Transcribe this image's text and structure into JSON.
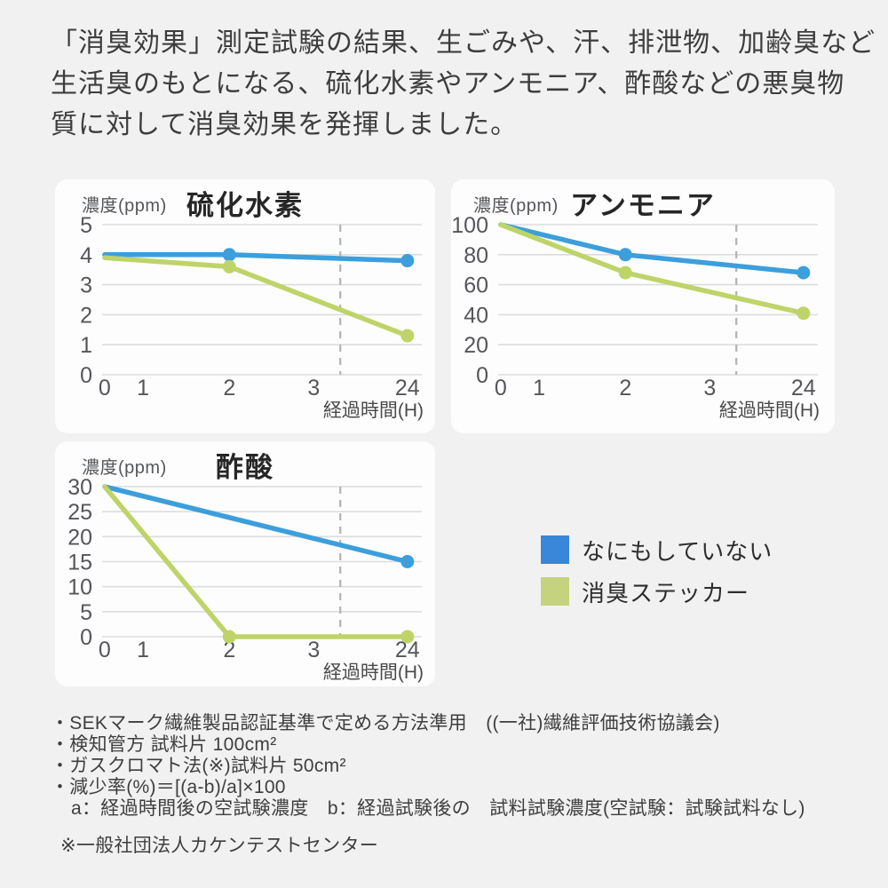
{
  "page": {
    "background": "#F1F1F2",
    "card_background": "#FDFDFD"
  },
  "header": {
    "text": "「消臭効果」測定試験の結果、生ごみや、汗、排泄物、加齢臭など\n生活臭のもとになる、硫化水素やアンモニア、酢酸などの悪臭物\n質に対して消臭効果を発揮しました。"
  },
  "colors": {
    "line_untreated": "#3C9FDC",
    "line_sticker": "#BED469",
    "legend_untreated": "#3A86D8",
    "legend_sticker": "#C5D37E",
    "grid": "#DCDDDE",
    "dashed_divider": "#B3B3B5",
    "tick_text": "#55565A",
    "axis_label_text": "#4A4A4A"
  },
  "chart_data": [
    {
      "type": "line",
      "title": "硫化水素",
      "ylabel": "濃度(ppm)",
      "xlabel": "経過時間(H)",
      "x_categories": [
        "0",
        "1",
        "2",
        "3",
        "24"
      ],
      "ylim": [
        0,
        5
      ],
      "yticks": [
        5,
        4,
        3,
        2,
        1,
        0
      ],
      "grid": true,
      "dashed_divider_between": [
        "3",
        "24"
      ],
      "series": [
        {
          "name": "なにもしていない",
          "color": "#3C9FDC",
          "x": [
            "0",
            "2",
            "24"
          ],
          "y": [
            4.0,
            4.0,
            3.8
          ]
        },
        {
          "name": "消臭ステッカー",
          "color": "#BED469",
          "x": [
            "0",
            "2",
            "24"
          ],
          "y": [
            3.9,
            3.6,
            1.3
          ]
        }
      ]
    },
    {
      "type": "line",
      "title": "アンモニア",
      "ylabel": "濃度(ppm)",
      "xlabel": "経過時間(H)",
      "x_categories": [
        "0",
        "1",
        "2",
        "3",
        "24"
      ],
      "ylim": [
        0,
        100
      ],
      "yticks": [
        100,
        80,
        60,
        40,
        20,
        0
      ],
      "grid": true,
      "dashed_divider_between": [
        "3",
        "24"
      ],
      "series": [
        {
          "name": "なにもしていない",
          "color": "#3C9FDC",
          "x": [
            "0",
            "2",
            "24"
          ],
          "y": [
            100,
            80,
            68
          ]
        },
        {
          "name": "消臭ステッカー",
          "color": "#BED469",
          "x": [
            "0",
            "2",
            "24"
          ],
          "y": [
            100,
            68,
            41
          ]
        }
      ]
    },
    {
      "type": "line",
      "title": "酢酸",
      "ylabel": "濃度(ppm)",
      "xlabel": "経過時間(H)",
      "x_categories": [
        "0",
        "1",
        "2",
        "3",
        "24"
      ],
      "ylim": [
        0,
        30
      ],
      "yticks": [
        30,
        25,
        20,
        15,
        10,
        5,
        0
      ],
      "grid": true,
      "dashed_divider_between": [
        "3",
        "24"
      ],
      "series": [
        {
          "name": "なにもしていない",
          "color": "#3C9FDC",
          "x": [
            "0",
            "24"
          ],
          "y": [
            30,
            15
          ]
        },
        {
          "name": "消臭ステッカー",
          "color": "#BED469",
          "x": [
            "0",
            "2",
            "24"
          ],
          "y": [
            30,
            0,
            0
          ]
        }
      ]
    }
  ],
  "legend": {
    "items": [
      {
        "label": "なにもしていない",
        "color": "#3A86D8"
      },
      {
        "label": "消臭ステッカー",
        "color": "#C5D37E"
      }
    ]
  },
  "footnotes": {
    "lines": [
      "・SEKマーク繊維製品認証基準で定める方法準用　((一社)繊維評価技術協議会)",
      "・検知管方 試料片 100cm²",
      "・ガスクロマト法(※)試料片 50cm²",
      "・減少率(%)＝[(a-b)/a]×100",
      "a：経過時間後の空試験濃度　b：経過試験後の　試料試験濃度(空試験：試験試料なし)",
      "※一般社団法人カケンテストセンター"
    ]
  }
}
